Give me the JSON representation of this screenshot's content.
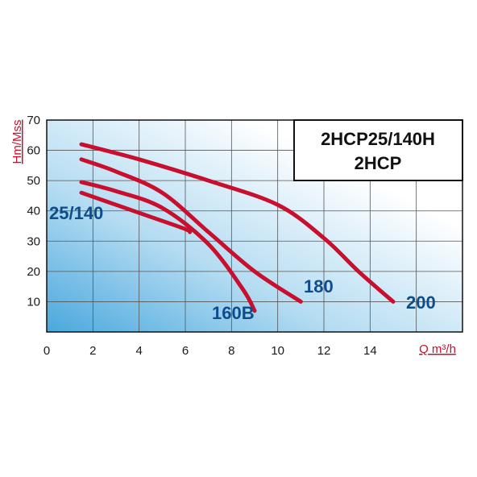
{
  "chart_data": {
    "type": "line",
    "title_lines": [
      "2HCP25/140H",
      "2HCP"
    ],
    "xlabel": "Q m³/h",
    "ylabel": "Hm/Mss",
    "xlim": [
      0,
      18
    ],
    "ylim": [
      0,
      70
    ],
    "x_ticks": [
      "0",
      "2",
      "4",
      "6",
      "8",
      "10",
      "12",
      "14"
    ],
    "y_ticks": [
      "10",
      "20",
      "30",
      "40",
      "50",
      "60",
      "70"
    ],
    "grid": true,
    "series": [
      {
        "name": "25/140",
        "x": [
          1.5,
          3,
          4.5,
          6,
          6.2
        ],
        "y": [
          46,
          42,
          38,
          34,
          33
        ]
      },
      {
        "name": "160B",
        "x": [
          1.5,
          3,
          5,
          7,
          8.5,
          9
        ],
        "y": [
          49.5,
          46.5,
          41,
          29,
          14,
          7
        ]
      },
      {
        "name": "180",
        "x": [
          1.5,
          3,
          5,
          7,
          9,
          11
        ],
        "y": [
          57,
          53,
          46,
          33,
          20,
          10
        ]
      },
      {
        "name": "200",
        "x": [
          1.5,
          4,
          7,
          10,
          12,
          13.5,
          15
        ],
        "y": [
          62,
          57,
          50,
          42,
          31,
          20,
          10
        ]
      }
    ],
    "colors": {
      "curve": "#c8102e",
      "label": "#0f4d8a",
      "axis_title": "#c8102e",
      "grid": "#555555"
    }
  }
}
